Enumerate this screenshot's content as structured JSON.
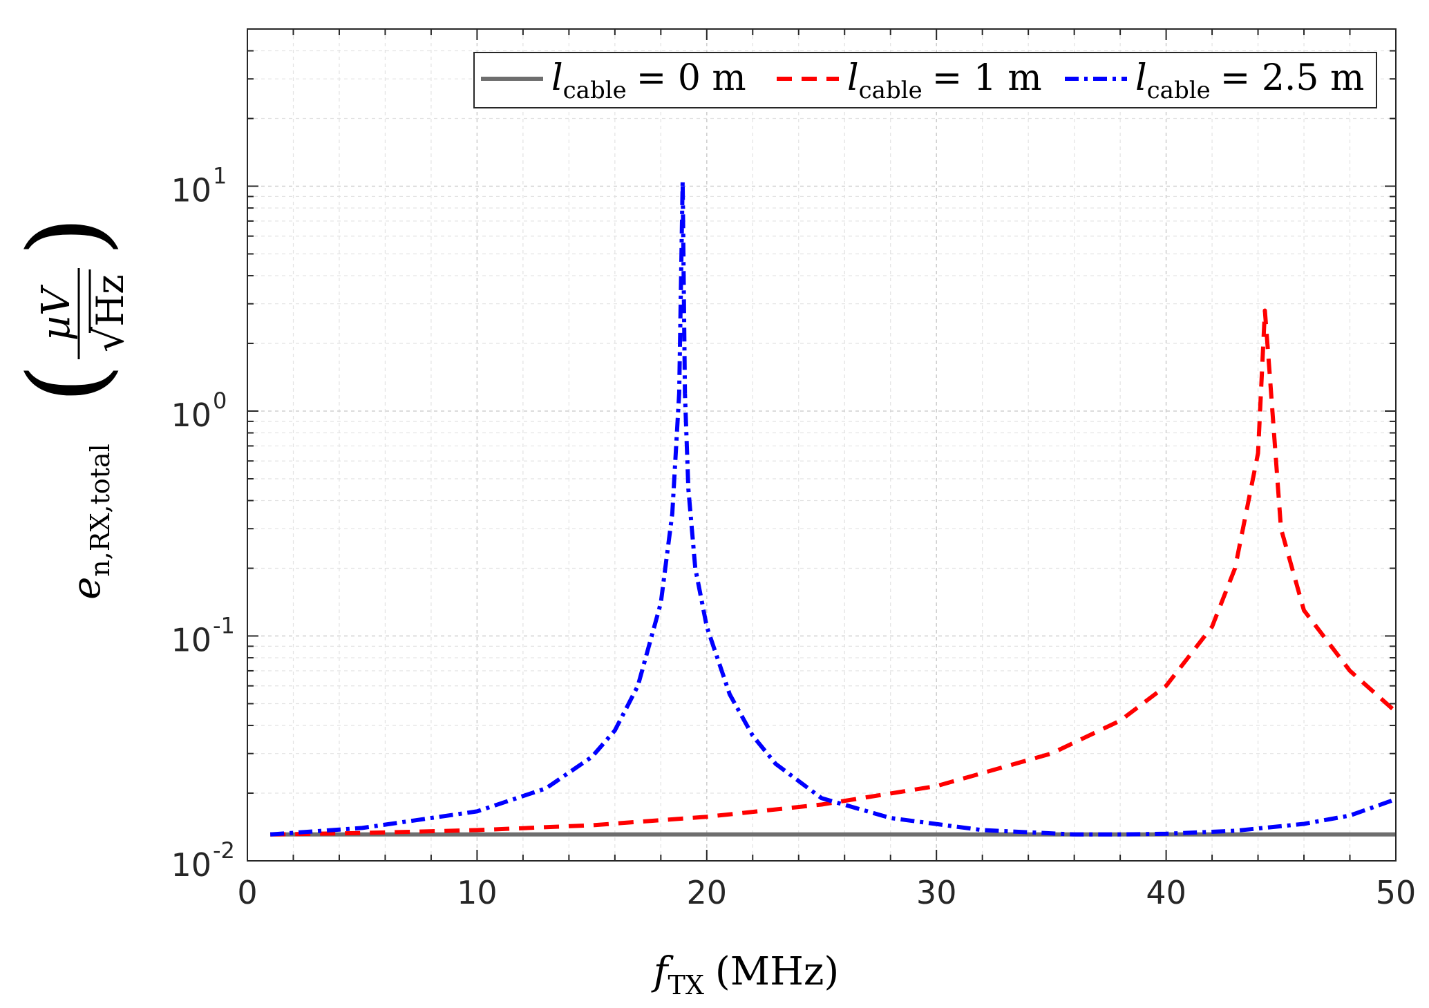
{
  "chart_data": {
    "type": "line",
    "title": "",
    "xscale": "linear",
    "yscale": "log",
    "xlim": [
      0,
      50
    ],
    "ylim": [
      0.01,
      50
    ],
    "grid": true,
    "legend_position": "top-right",
    "legend_orientation": "horizontal",
    "x_ticks": [
      0,
      10,
      20,
      30,
      40,
      50
    ],
    "x_tick_labels": [
      "0",
      "10",
      "20",
      "30",
      "40",
      "50"
    ],
    "y_ticks": [
      0.01,
      0.1,
      1,
      10
    ],
    "y_tick_labels": [
      {
        "base": "10",
        "exp": "-2"
      },
      {
        "base": "10",
        "exp": "-1"
      },
      {
        "base": "10",
        "exp": "0"
      },
      {
        "base": "10",
        "exp": "1"
      }
    ],
    "xlabel": {
      "symbol": "f",
      "subscript": "TX",
      "units": "(MHz)"
    },
    "ylabel": {
      "symbol": "e",
      "subscript": "n,RX,total",
      "numerator": "µV",
      "denominator": "Hz"
    },
    "series": [
      {
        "name": "l_cable = 0 m",
        "legend": {
          "symbol": "l",
          "subscript": "cable",
          "rest": "= 0 m"
        },
        "color": "#6e6e6e",
        "dash": "solid",
        "x": [
          1,
          10,
          20,
          30,
          40,
          50
        ],
        "y": [
          0.0131,
          0.0131,
          0.0131,
          0.0131,
          0.0131,
          0.0131
        ]
      },
      {
        "name": "l_cable = 1 m",
        "legend": {
          "symbol": "l",
          "subscript": "cable",
          "rest": "= 1 m"
        },
        "color": "#ff0000",
        "dash": "dashed",
        "x": [
          1,
          5,
          10,
          15,
          20,
          25,
          30,
          35,
          38,
          40,
          42,
          43,
          44,
          44.3,
          44.5,
          45,
          46,
          48,
          50
        ],
        "y": [
          0.0131,
          0.0133,
          0.0137,
          0.0144,
          0.0157,
          0.0178,
          0.0215,
          0.03,
          0.042,
          0.06,
          0.11,
          0.2,
          0.65,
          2.8,
          1.5,
          0.3,
          0.13,
          0.07,
          0.046
        ]
      },
      {
        "name": "l_cable = 2.5 m",
        "legend": {
          "symbol": "l",
          "subscript": "cable",
          "rest": "= 2.5 m"
        },
        "color": "#0000ff",
        "dash": "dashdot",
        "x": [
          1,
          5,
          10,
          13,
          15,
          16,
          17,
          18,
          18.5,
          18.8,
          18.95,
          19.05,
          19.2,
          19.5,
          20,
          21,
          22,
          23,
          25,
          28,
          32,
          36,
          38,
          40,
          43,
          46,
          48,
          50
        ],
        "y": [
          0.0131,
          0.014,
          0.0166,
          0.021,
          0.029,
          0.038,
          0.06,
          0.14,
          0.35,
          1.2,
          10.5,
          1.2,
          0.45,
          0.2,
          0.11,
          0.055,
          0.036,
          0.027,
          0.019,
          0.0155,
          0.0137,
          0.0131,
          0.0131,
          0.0132,
          0.0136,
          0.0146,
          0.0159,
          0.0188
        ]
      }
    ]
  }
}
